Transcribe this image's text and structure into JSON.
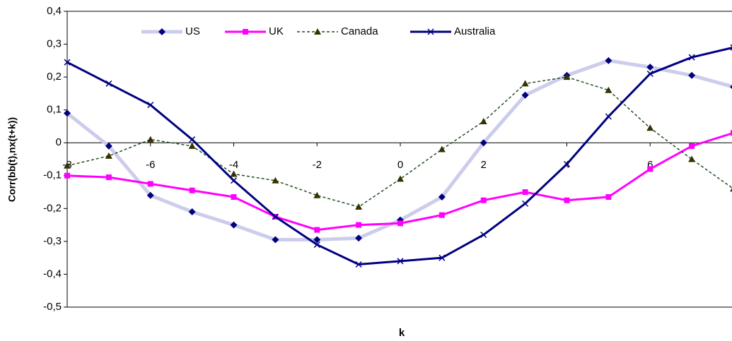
{
  "chart_data": {
    "type": "line",
    "x_label": "k",
    "y_label": "Corr(bb(t),nx(t+k))",
    "x": [
      -8,
      -7,
      -6,
      -5,
      -4,
      -3,
      -2,
      -1,
      0,
      1,
      2,
      3,
      4,
      5,
      6,
      7,
      8
    ],
    "xlim": [
      -8,
      8
    ],
    "xticks": [
      -8,
      -6,
      -4,
      -2,
      0,
      2,
      4,
      6
    ],
    "ylim": [
      -0.5,
      0.4
    ],
    "yticks": [
      {
        "value": -0.5,
        "label": "-0,5"
      },
      {
        "value": -0.4,
        "label": "-0,4"
      },
      {
        "value": -0.3,
        "label": "-0,3"
      },
      {
        "value": -0.2,
        "label": "-0,2"
      },
      {
        "value": -0.1,
        "label": "-0,1"
      },
      0,
      {
        "value": 0.1,
        "label": "0,1"
      },
      {
        "value": 0.2,
        "label": "0,2"
      },
      {
        "value": 0.3,
        "label": "0,3"
      },
      {
        "value": 0.4,
        "label": "0,4"
      }
    ],
    "legend": "top",
    "series": [
      {
        "name": "US",
        "color": "#000080",
        "line_color": "#ccccec",
        "marker": "diamond",
        "dash": false,
        "width": 5,
        "values": [
          0.09,
          -0.01,
          -0.16,
          -0.21,
          -0.25,
          -0.295,
          -0.295,
          -0.29,
          -0.235,
          -0.165,
          0.0,
          0.145,
          0.205,
          0.25,
          0.23,
          0.205,
          0.17
        ]
      },
      {
        "name": "UK",
        "color": "#ff00ff",
        "line_color": "#ff00ff",
        "marker": "square",
        "dash": false,
        "width": 3,
        "values": [
          -0.1,
          -0.105,
          -0.125,
          -0.145,
          -0.165,
          -0.225,
          -0.265,
          -0.25,
          -0.245,
          -0.22,
          -0.175,
          -0.15,
          -0.175,
          -0.165,
          -0.08,
          -0.01,
          0.03
        ]
      },
      {
        "name": "Canada",
        "color": "#333300",
        "line_color": "#1f4f1f",
        "marker": "triangle",
        "dash": true,
        "width": 1.5,
        "values": [
          -0.07,
          -0.04,
          0.01,
          -0.01,
          -0.095,
          -0.115,
          -0.16,
          -0.195,
          -0.11,
          -0.02,
          0.065,
          0.18,
          0.2,
          0.16,
          0.045,
          -0.05,
          -0.14
        ]
      },
      {
        "name": "Australia",
        "color": "#000080",
        "line_color": "#000080",
        "marker": "x",
        "dash": false,
        "width": 3,
        "values": [
          0.245,
          0.18,
          0.115,
          0.01,
          -0.115,
          -0.225,
          -0.31,
          -0.37,
          -0.36,
          -0.35,
          -0.28,
          -0.185,
          -0.065,
          0.08,
          0.21,
          0.26,
          0.29
        ]
      }
    ]
  }
}
